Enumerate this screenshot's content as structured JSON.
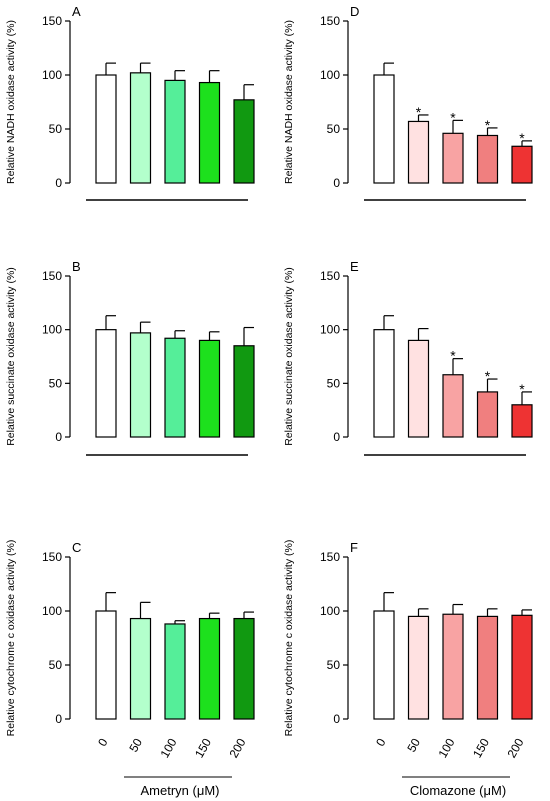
{
  "chart_data": [
    {
      "type": "bar",
      "panel_label": "A",
      "ylabel": "Relative NADH oxidase activity (%)",
      "ylim": [
        0,
        150
      ],
      "yticks": [
        0,
        50,
        100,
        150
      ],
      "categories": [
        "0",
        "50",
        "100",
        "150",
        "200"
      ],
      "values": [
        100,
        102,
        95,
        93,
        77
      ],
      "errors": [
        11,
        9,
        9,
        11,
        14
      ],
      "significant": [
        false,
        false,
        false,
        false,
        false
      ],
      "colors": [
        "#ffffff",
        "#b3ffcc",
        "#55ee99",
        "#1de01d",
        "#119911"
      ]
    },
    {
      "type": "bar",
      "panel_label": "D",
      "ylabel": "Relative NADH oxidase activity (%)",
      "ylim": [
        0,
        150
      ],
      "yticks": [
        0,
        50,
        100,
        150
      ],
      "categories": [
        "0",
        "50",
        "100",
        "150",
        "200"
      ],
      "values": [
        100,
        57,
        46,
        44,
        34
      ],
      "errors": [
        11,
        6,
        12,
        7,
        5
      ],
      "significant": [
        false,
        true,
        true,
        true,
        true
      ],
      "colors": [
        "#ffffff",
        "#ffe1e1",
        "#f8a3a3",
        "#f07f7f",
        "#ee3333"
      ]
    },
    {
      "type": "bar",
      "panel_label": "B",
      "ylabel": "Relative succinate oxidase activity (%)",
      "ylim": [
        0,
        150
      ],
      "yticks": [
        0,
        50,
        100,
        150
      ],
      "categories": [
        "0",
        "50",
        "100",
        "150",
        "200"
      ],
      "values": [
        100,
        97,
        92,
        90,
        85
      ],
      "errors": [
        13,
        10,
        7,
        8,
        17
      ],
      "significant": [
        false,
        false,
        false,
        false,
        false
      ],
      "colors": [
        "#ffffff",
        "#b3ffcc",
        "#55ee99",
        "#1de01d",
        "#119911"
      ]
    },
    {
      "type": "bar",
      "panel_label": "E",
      "ylabel": "Relative succinate oxidase activity (%)",
      "ylim": [
        0,
        150
      ],
      "yticks": [
        0,
        50,
        100,
        150
      ],
      "categories": [
        "0",
        "50",
        "100",
        "150",
        "200"
      ],
      "values": [
        100,
        90,
        58,
        42,
        30
      ],
      "errors": [
        13,
        11,
        15,
        12,
        12
      ],
      "significant": [
        false,
        false,
        true,
        true,
        true
      ],
      "colors": [
        "#ffffff",
        "#ffe1e1",
        "#f8a3a3",
        "#f07f7f",
        "#ee3333"
      ]
    },
    {
      "type": "bar",
      "panel_label": "C",
      "ylabel": "Relative cytochrome c oxidase activity (%)",
      "ylim": [
        0,
        150
      ],
      "yticks": [
        0,
        50,
        100,
        150
      ],
      "categories": [
        "0",
        "50",
        "100",
        "150",
        "200"
      ],
      "values": [
        100,
        93,
        88,
        93,
        93
      ],
      "errors": [
        17,
        15,
        3,
        5,
        6
      ],
      "significant": [
        false,
        false,
        false,
        false,
        false
      ],
      "colors": [
        "#ffffff",
        "#b3ffcc",
        "#55ee99",
        "#1de01d",
        "#119911"
      ],
      "xlabel": "Ametryn (μM)"
    },
    {
      "type": "bar",
      "panel_label": "F",
      "ylabel": "Relative cytochrome c oxidase activity (%)",
      "ylim": [
        0,
        150
      ],
      "yticks": [
        0,
        50,
        100,
        150
      ],
      "categories": [
        "0",
        "50",
        "100",
        "150",
        "200"
      ],
      "values": [
        100,
        95,
        97,
        95,
        96
      ],
      "errors": [
        17,
        7,
        9,
        7,
        5
      ],
      "significant": [
        false,
        false,
        false,
        false,
        false
      ],
      "colors": [
        "#ffffff",
        "#ffe1e1",
        "#f8a3a3",
        "#f07f7f",
        "#ee3333"
      ],
      "xlabel": "Clomazone (μM)"
    }
  ],
  "significance_marker": "*"
}
